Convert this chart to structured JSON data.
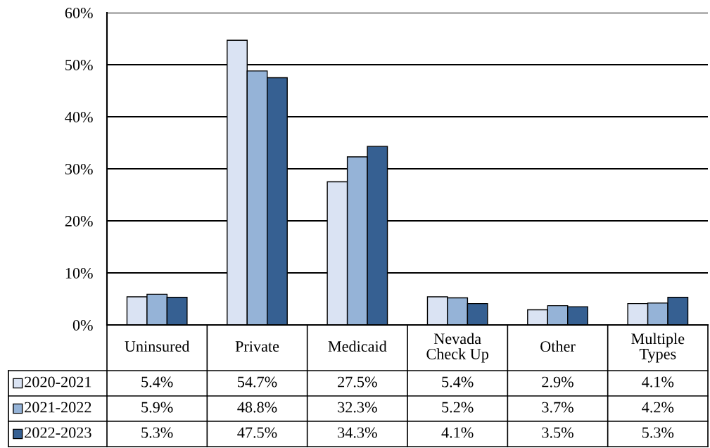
{
  "chart_data": {
    "type": "bar",
    "categories": [
      "Uninsured",
      "Private",
      "Medicaid",
      "Nevada\nCheck Up",
      "Other",
      "Multiple\nTypes"
    ],
    "series": [
      {
        "name": "2020-2021",
        "color": "#dae3f3",
        "values": [
          5.4,
          54.7,
          27.5,
          5.4,
          2.9,
          4.1
        ],
        "value_labels": [
          "5.4%",
          "54.7%",
          "27.5%",
          "5.4%",
          "2.9%",
          "4.1%"
        ]
      },
      {
        "name": "2021-2022",
        "color": "#95b3d7",
        "values": [
          5.9,
          48.8,
          32.3,
          5.2,
          3.7,
          4.2
        ],
        "value_labels": [
          "5.9%",
          "48.8%",
          "32.3%",
          "5.2%",
          "3.7%",
          "4.2%"
        ]
      },
      {
        "name": "2022-2023",
        "color": "#366092",
        "values": [
          5.3,
          47.5,
          34.3,
          4.1,
          3.5,
          5.3
        ],
        "value_labels": [
          "5.3%",
          "47.5%",
          "34.3%",
          "4.1%",
          "3.5%",
          "5.3%"
        ]
      }
    ],
    "ylim": [
      0,
      60
    ],
    "yticks": [
      {
        "value": 0,
        "label": "0%"
      },
      {
        "value": 10,
        "label": "10%"
      },
      {
        "value": 20,
        "label": "20%"
      },
      {
        "value": 30,
        "label": "30%"
      },
      {
        "value": 40,
        "label": "40%"
      },
      {
        "value": 50,
        "label": "50%"
      },
      {
        "value": 60,
        "label": "60%"
      }
    ],
    "grid": "y",
    "legend": "bottom"
  }
}
